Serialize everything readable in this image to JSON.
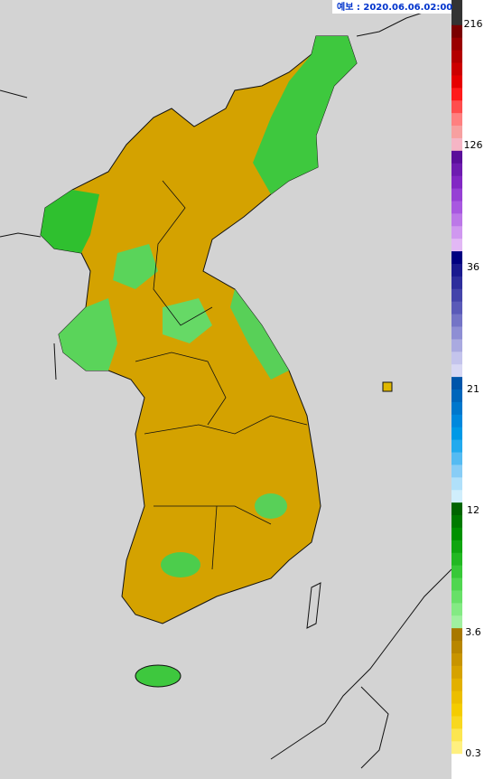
{
  "header": {
    "forecast_label": "예보 : 2020.06.06.02:00"
  },
  "legend": {
    "labels": [
      "216",
      "126",
      "36",
      "21",
      "12",
      "3.6",
      "0.3"
    ]
  }
}
